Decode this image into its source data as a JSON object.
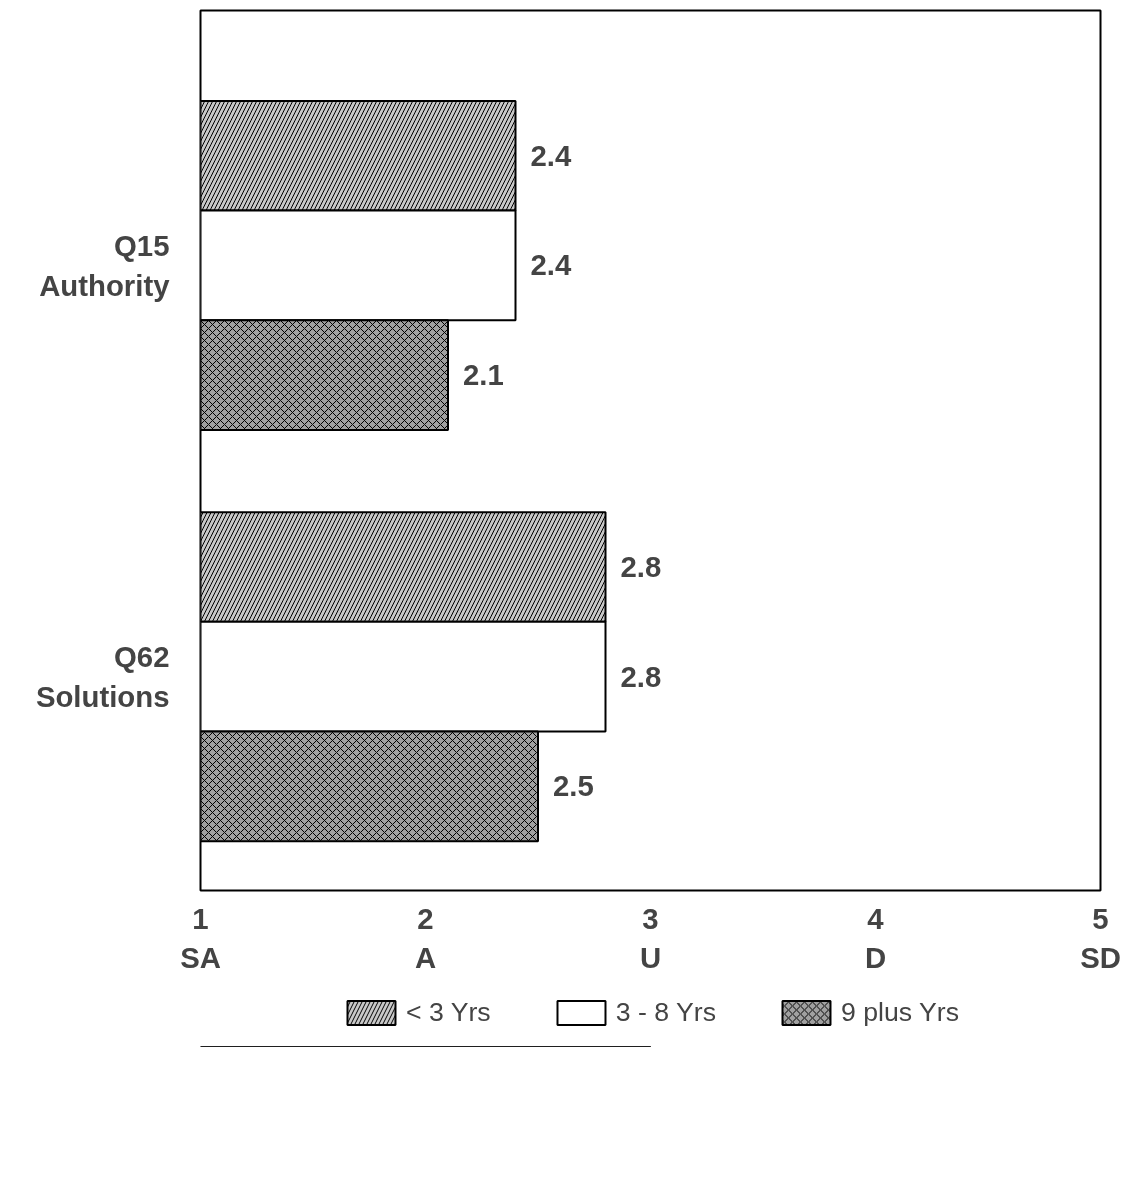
{
  "chart_data": {
    "type": "bar",
    "orientation": "horizontal",
    "categories": [
      "Q15\nAuthority",
      "Q62\nSolutions"
    ],
    "series": [
      {
        "name": "< 3 Yrs",
        "color": "#c8c8c8",
        "values": [
          2.4,
          2.8
        ]
      },
      {
        "name": "3 - 8 Yrs",
        "color": "#ffffff",
        "values": [
          2.4,
          2.8
        ]
      },
      {
        "name": "9 plus Yrs",
        "color": "#a0a0a0",
        "values": [
          2.1,
          2.5
        ]
      }
    ],
    "xlim": [
      1,
      5
    ],
    "xticks": [
      {
        "value": 1,
        "label": "1\nSA"
      },
      {
        "value": 2,
        "label": "2\nA"
      },
      {
        "value": 3,
        "label": "3\nU"
      },
      {
        "value": 4,
        "label": "4\nD"
      },
      {
        "value": 5,
        "label": "5\nSD"
      }
    ],
    "data_labels": true,
    "grid": false,
    "legend": "bottom"
  }
}
